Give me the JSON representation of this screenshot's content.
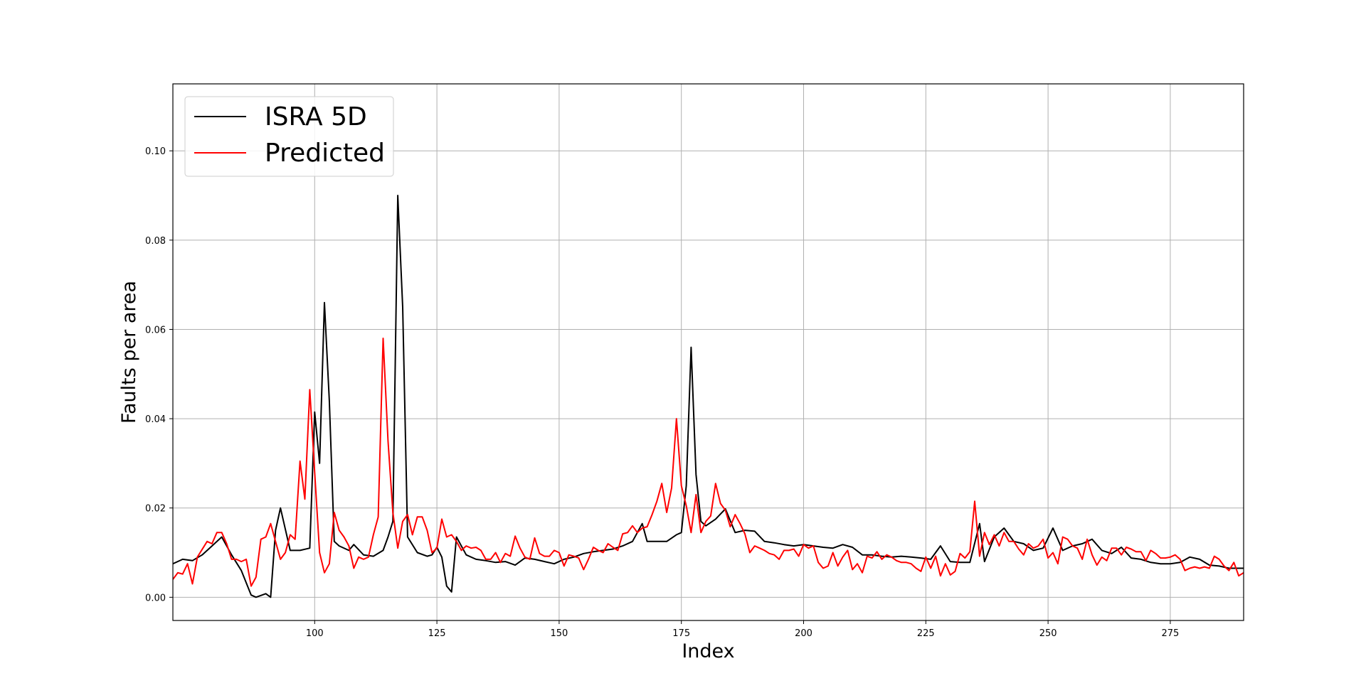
{
  "chart_data": {
    "type": "line",
    "xlabel": "Index",
    "ylabel": "Faults per area",
    "xlim": [
      71,
      290
    ],
    "ylim": [
      -0.0052,
      0.115
    ],
    "xticks": [
      100,
      125,
      150,
      175,
      200,
      225,
      250,
      275
    ],
    "xtick_labels": [
      "100",
      "125",
      "150",
      "175",
      "200",
      "225",
      "250",
      "275"
    ],
    "yticks": [
      0.0,
      0.02,
      0.04,
      0.06,
      0.08,
      0.1
    ],
    "ytick_labels": [
      "0.00",
      "0.02",
      "0.04",
      "0.06",
      "0.08",
      "0.10"
    ],
    "grid": true,
    "legend_position": "upper-left",
    "series": [
      {
        "name": "ISRA 5D",
        "color": "#000000",
        "x": [
          71,
          73,
          75,
          77,
          79,
          81,
          83,
          85,
          87,
          88,
          90,
          91,
          92,
          93,
          95,
          97,
          99,
          100,
          101,
          102,
          103,
          104,
          105,
          107,
          108,
          110,
          112,
          114,
          115,
          116,
          117,
          118,
          119,
          121,
          123,
          124,
          125,
          126,
          127,
          128,
          129,
          131,
          133,
          135,
          137,
          139,
          141,
          143,
          145,
          147,
          149,
          151,
          153,
          155,
          157,
          159,
          161,
          163,
          165,
          167,
          168,
          170,
          172,
          174,
          175,
          176,
          177,
          178,
          179,
          180,
          182,
          184,
          186,
          188,
          190,
          192,
          194,
          196,
          198,
          200,
          202,
          204,
          206,
          208,
          210,
          212,
          214,
          216,
          218,
          220,
          222,
          224,
          226,
          228,
          230,
          232,
          234,
          236,
          237,
          239,
          241,
          243,
          245,
          247,
          249,
          251,
          253,
          255,
          257,
          259,
          261,
          263,
          265,
          267,
          269,
          271,
          273,
          275,
          277,
          279,
          281,
          283,
          285,
          287,
          290
        ],
        "values": [
          0.0075,
          0.0085,
          0.0082,
          0.0095,
          0.0115,
          0.0135,
          0.0095,
          0.006,
          0.0005,
          0.0,
          0.0008,
          0.0,
          0.015,
          0.02,
          0.0105,
          0.0105,
          0.011,
          0.0415,
          0.03,
          0.066,
          0.044,
          0.0125,
          0.0115,
          0.0105,
          0.0118,
          0.0095,
          0.0092,
          0.0105,
          0.0135,
          0.017,
          0.09,
          0.065,
          0.0135,
          0.01,
          0.0092,
          0.0095,
          0.0112,
          0.009,
          0.0025,
          0.0012,
          0.0135,
          0.0095,
          0.0085,
          0.0082,
          0.0078,
          0.008,
          0.0072,
          0.0088,
          0.0085,
          0.008,
          0.0075,
          0.0085,
          0.009,
          0.0098,
          0.0102,
          0.0105,
          0.0108,
          0.0115,
          0.0125,
          0.0165,
          0.0125,
          0.0125,
          0.0125,
          0.014,
          0.0145,
          0.025,
          0.056,
          0.0275,
          0.017,
          0.016,
          0.0175,
          0.0198,
          0.0145,
          0.015,
          0.0148,
          0.0125,
          0.0122,
          0.0118,
          0.0115,
          0.0118,
          0.0115,
          0.0112,
          0.011,
          0.0118,
          0.0112,
          0.0095,
          0.0095,
          0.0092,
          0.009,
          0.0092,
          0.009,
          0.0088,
          0.0085,
          0.0115,
          0.008,
          0.0078,
          0.0078,
          0.0165,
          0.008,
          0.0135,
          0.0155,
          0.0125,
          0.012,
          0.0105,
          0.011,
          0.0155,
          0.0105,
          0.0115,
          0.012,
          0.013,
          0.0105,
          0.0098,
          0.0112,
          0.0088,
          0.0085,
          0.0078,
          0.0075,
          0.0075,
          0.0078,
          0.009,
          0.0085,
          0.0072,
          0.007,
          0.0065,
          0.0065
        ]
      },
      {
        "name": "Predicted",
        "color": "#ff0000",
        "x": [
          71,
          72,
          73,
          74,
          75,
          76,
          78,
          79,
          80,
          81,
          82,
          83,
          84,
          85,
          86,
          87,
          88,
          89,
          90,
          91,
          92,
          93,
          94,
          95,
          96,
          97,
          98,
          99,
          100,
          101,
          102,
          103,
          104,
          105,
          106,
          107,
          108,
          109,
          110,
          111,
          112,
          113,
          114,
          115,
          116,
          117,
          118,
          119,
          120,
          121,
          122,
          123,
          124,
          125,
          126,
          127,
          128,
          129,
          130,
          131,
          132,
          133,
          134,
          135,
          136,
          137,
          138,
          139,
          140,
          141,
          142,
          143,
          144,
          145,
          146,
          147,
          148,
          149,
          150,
          151,
          152,
          153,
          154,
          155,
          156,
          157,
          158,
          159,
          160,
          161,
          162,
          163,
          164,
          165,
          166,
          167,
          168,
          169,
          170,
          171,
          172,
          173,
          174,
          175,
          176,
          177,
          178,
          179,
          180,
          181,
          182,
          183,
          184,
          185,
          186,
          187,
          188,
          189,
          190,
          191,
          192,
          193,
          194,
          195,
          196,
          197,
          198,
          199,
          200,
          201,
          202,
          203,
          204,
          205,
          206,
          207,
          208,
          209,
          210,
          211,
          212,
          213,
          214,
          215,
          216,
          217,
          218,
          219,
          220,
          221,
          222,
          223,
          224,
          225,
          226,
          227,
          228,
          229,
          230,
          231,
          232,
          233,
          234,
          235,
          236,
          237,
          238,
          239,
          240,
          241,
          242,
          243,
          244,
          245,
          246,
          247,
          248,
          249,
          250,
          251,
          252,
          253,
          254,
          255,
          256,
          257,
          258,
          259,
          260,
          261,
          262,
          263,
          264,
          265,
          266,
          267,
          268,
          269,
          270,
          271,
          272,
          273,
          274,
          275,
          276,
          277,
          278,
          279,
          280,
          281,
          282,
          283,
          284,
          285,
          286,
          287,
          288,
          289,
          290
        ],
        "values": [
          0.004,
          0.0055,
          0.0052,
          0.0075,
          0.003,
          0.009,
          0.0125,
          0.012,
          0.0145,
          0.0145,
          0.012,
          0.0085,
          0.0085,
          0.008,
          0.0085,
          0.0025,
          0.0045,
          0.013,
          0.0135,
          0.0165,
          0.0125,
          0.0085,
          0.01,
          0.014,
          0.013,
          0.0305,
          0.022,
          0.0465,
          0.028,
          0.01,
          0.0055,
          0.0075,
          0.019,
          0.015,
          0.0135,
          0.0115,
          0.0065,
          0.009,
          0.0085,
          0.009,
          0.014,
          0.018,
          0.058,
          0.035,
          0.019,
          0.011,
          0.017,
          0.0185,
          0.014,
          0.018,
          0.018,
          0.015,
          0.01,
          0.011,
          0.0175,
          0.0135,
          0.014,
          0.0125,
          0.0105,
          0.0115,
          0.011,
          0.0112,
          0.0105,
          0.0085,
          0.0085,
          0.01,
          0.0078,
          0.0098,
          0.0092,
          0.0137,
          0.011,
          0.009,
          0.0085,
          0.0133,
          0.0098,
          0.0092,
          0.0092,
          0.0105,
          0.01,
          0.007,
          0.0095,
          0.0092,
          0.0088,
          0.0062,
          0.0085,
          0.0112,
          0.0105,
          0.01,
          0.012,
          0.0112,
          0.0105,
          0.0142,
          0.0145,
          0.016,
          0.0145,
          0.0155,
          0.0158,
          0.0185,
          0.0215,
          0.0255,
          0.019,
          0.0245,
          0.04,
          0.025,
          0.0205,
          0.0145,
          0.023,
          0.0145,
          0.017,
          0.0182,
          0.0255,
          0.021,
          0.0195,
          0.0158,
          0.0185,
          0.0165,
          0.0142,
          0.01,
          0.0115,
          0.011,
          0.0105,
          0.0098,
          0.0095,
          0.0085,
          0.0105,
          0.0105,
          0.0108,
          0.0092,
          0.0118,
          0.011,
          0.0115,
          0.0078,
          0.0065,
          0.007,
          0.01,
          0.007,
          0.009,
          0.0105,
          0.0062,
          0.0075,
          0.0055,
          0.0092,
          0.0088,
          0.0102,
          0.0085,
          0.0095,
          0.009,
          0.0082,
          0.0078,
          0.0078,
          0.0075,
          0.0065,
          0.0058,
          0.009,
          0.0065,
          0.0092,
          0.0048,
          0.0075,
          0.005,
          0.0058,
          0.0098,
          0.0088,
          0.0102,
          0.0215,
          0.0092,
          0.0145,
          0.0118,
          0.014,
          0.0115,
          0.0145,
          0.0125,
          0.0125,
          0.0108,
          0.0095,
          0.012,
          0.011,
          0.0115,
          0.013,
          0.0088,
          0.01,
          0.0075,
          0.0135,
          0.013,
          0.0115,
          0.011,
          0.0085,
          0.013,
          0.0095,
          0.0072,
          0.009,
          0.0082,
          0.011,
          0.011,
          0.0095,
          0.0112,
          0.0108,
          0.0102,
          0.0102,
          0.0082,
          0.0105,
          0.0098,
          0.0088,
          0.0088,
          0.009,
          0.0095,
          0.0085,
          0.006,
          0.0065,
          0.0068,
          0.0065,
          0.0068,
          0.0065,
          0.0092,
          0.0085,
          0.007,
          0.006,
          0.0078,
          0.0048,
          0.0055
        ]
      }
    ]
  }
}
